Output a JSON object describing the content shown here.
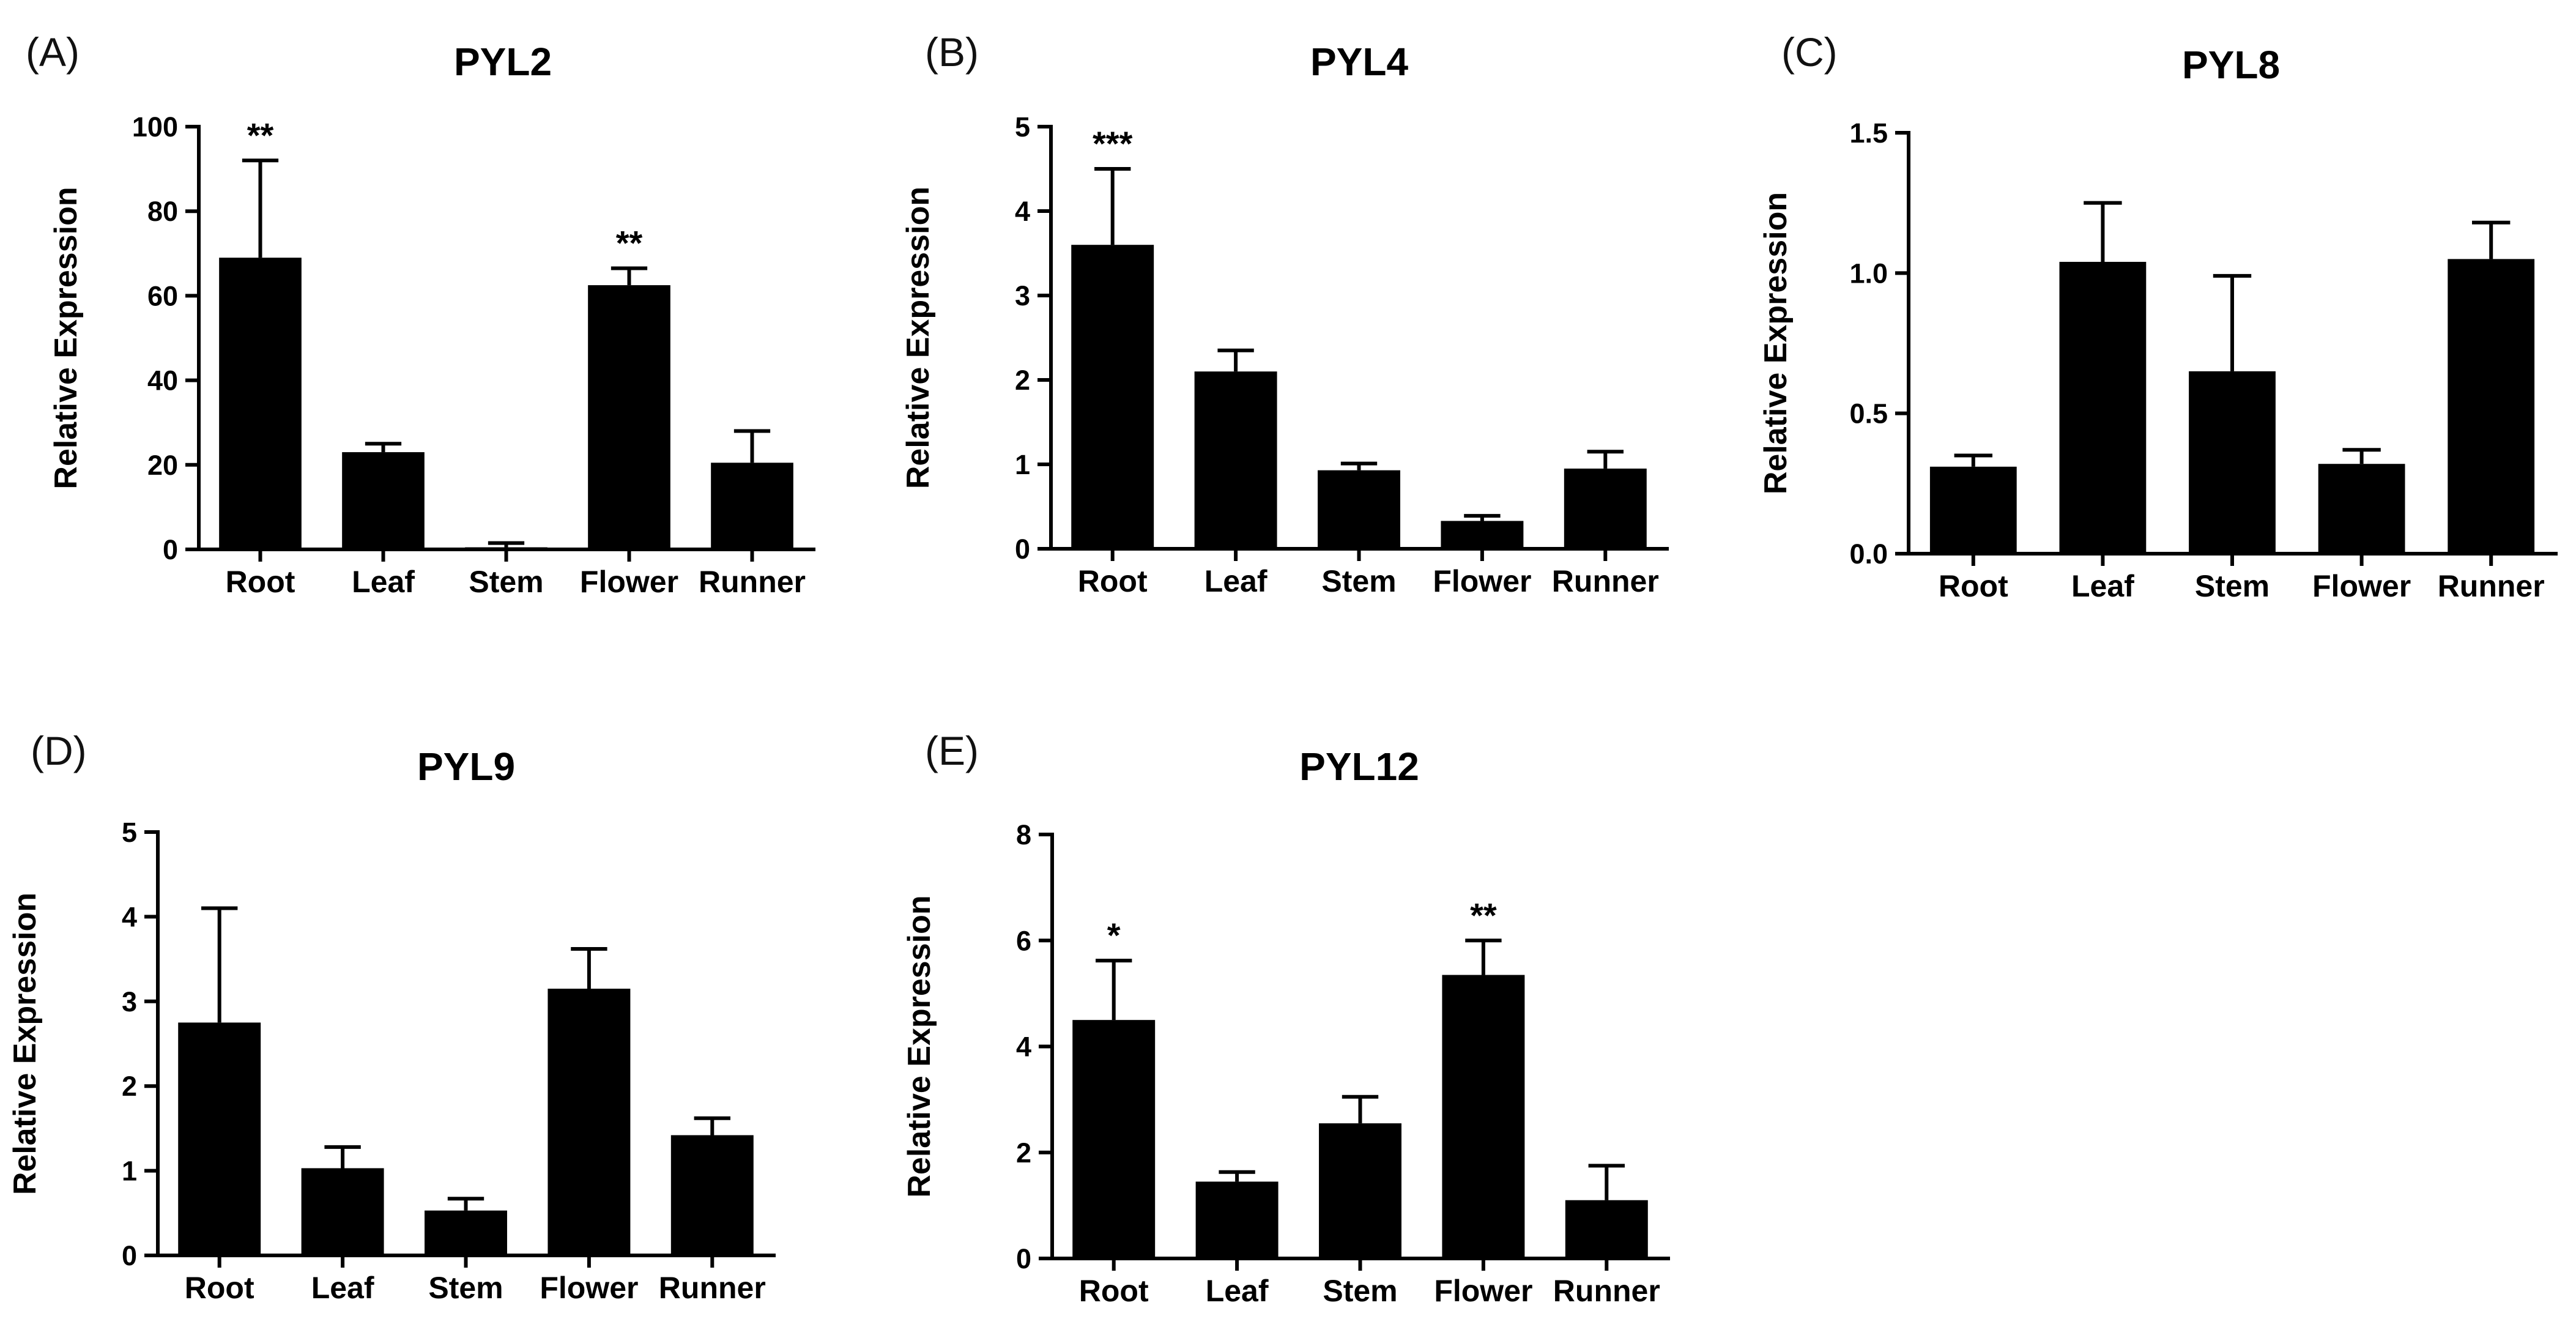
{
  "chart_data": [
    {
      "panel": "(A)",
      "type": "bar",
      "title": "PYL2",
      "ylabel": "Relative Expression",
      "xlabel": "",
      "categories": [
        "Root",
        "Leaf",
        "Stem",
        "Flower",
        "Runner"
      ],
      "values": [
        69,
        23,
        0.5,
        62.5,
        20.5
      ],
      "errors": [
        23,
        2,
        1,
        4,
        7.5
      ],
      "significance": [
        "**",
        "",
        "",
        "**",
        ""
      ],
      "ylim": [
        0,
        100
      ],
      "yticks": [
        "0",
        "20",
        "40",
        "60",
        "80",
        "100"
      ],
      "grid": false,
      "bar_color": "#000000"
    },
    {
      "panel": "(B)",
      "type": "bar",
      "title": "PYL4",
      "ylabel": "Relative Expression",
      "xlabel": "",
      "categories": [
        "Root",
        "Leaf",
        "Stem",
        "Flower",
        "Runner"
      ],
      "values": [
        3.6,
        2.1,
        0.93,
        0.33,
        0.95
      ],
      "errors": [
        0.9,
        0.25,
        0.08,
        0.06,
        0.2
      ],
      "significance": [
        "***",
        "",
        "",
        "",
        ""
      ],
      "ylim": [
        0,
        5
      ],
      "yticks": [
        "0",
        "1",
        "2",
        "3",
        "4",
        "5"
      ],
      "grid": false,
      "bar_color": "#000000"
    },
    {
      "panel": "(C)",
      "type": "bar",
      "title": "PYL8",
      "ylabel": "Relative Expression",
      "xlabel": "",
      "categories": [
        "Root",
        "Leaf",
        "Stem",
        "Flower",
        "Runner"
      ],
      "values": [
        0.31,
        1.04,
        0.65,
        0.32,
        1.05
      ],
      "errors": [
        0.04,
        0.21,
        0.34,
        0.05,
        0.13
      ],
      "significance": [
        "",
        "",
        "",
        "",
        ""
      ],
      "ylim": [
        0,
        1.5
      ],
      "yticks": [
        "0.0",
        "0.5",
        "1.0",
        "1.5"
      ],
      "grid": false,
      "bar_color": "#000000"
    },
    {
      "panel": "(D)",
      "type": "bar",
      "title": "PYL9",
      "ylabel": "Relative Expression",
      "xlabel": "",
      "categories": [
        "Root",
        "Leaf",
        "Stem",
        "Flower",
        "Runner"
      ],
      "values": [
        2.75,
        1.03,
        0.53,
        3.15,
        1.42
      ],
      "errors": [
        1.35,
        0.25,
        0.14,
        0.47,
        0.2
      ],
      "significance": [
        "",
        "",
        "",
        "",
        ""
      ],
      "ylim": [
        0,
        5
      ],
      "yticks": [
        "0",
        "1",
        "2",
        "3",
        "4",
        "5"
      ],
      "grid": false,
      "bar_color": "#000000"
    },
    {
      "panel": "(E)",
      "type": "bar",
      "title": "PYL12",
      "ylabel": "Relative Expression",
      "xlabel": "",
      "categories": [
        "Root",
        "Leaf",
        "Stem",
        "Flower",
        "Runner"
      ],
      "values": [
        4.5,
        1.45,
        2.55,
        5.35,
        1.1
      ],
      "errors": [
        1.12,
        0.18,
        0.5,
        0.65,
        0.65
      ],
      "significance": [
        "*",
        "",
        "",
        "**",
        ""
      ],
      "ylim": [
        0,
        8
      ],
      "yticks": [
        "0",
        "2",
        "4",
        "6",
        "8"
      ],
      "grid": false,
      "bar_color": "#000000"
    }
  ]
}
